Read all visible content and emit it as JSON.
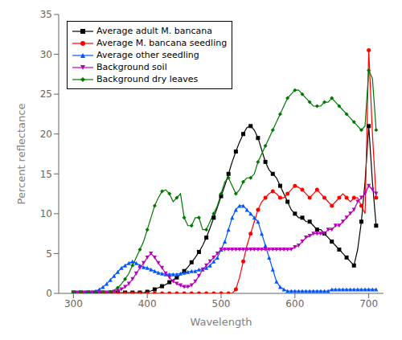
{
  "chart_data": {
    "type": "line",
    "xlabel": "Wavelength",
    "ylabel": "Percent reflectance",
    "xlim": [
      280,
      720
    ],
    "ylim": [
      0,
      35
    ],
    "xticks": [
      300,
      400,
      500,
      600,
      700
    ],
    "yticks": [
      0,
      5,
      10,
      15,
      20,
      25,
      30,
      35
    ],
    "grid": false,
    "legend": "upper left",
    "x": [
      300,
      305,
      310,
      315,
      320,
      325,
      330,
      335,
      340,
      345,
      350,
      355,
      360,
      365,
      370,
      375,
      380,
      385,
      390,
      395,
      400,
      405,
      410,
      415,
      420,
      425,
      430,
      435,
      440,
      445,
      450,
      455,
      460,
      465,
      470,
      475,
      480,
      485,
      490,
      495,
      500,
      505,
      510,
      515,
      520,
      525,
      530,
      535,
      540,
      545,
      550,
      555,
      560,
      565,
      570,
      575,
      580,
      585,
      590,
      595,
      600,
      605,
      610,
      615,
      620,
      625,
      630,
      635,
      640,
      645,
      650,
      655,
      660,
      665,
      670,
      675,
      680,
      685,
      690,
      695,
      700,
      705,
      710
    ],
    "series": [
      {
        "name": "Average adult M. bancana",
        "color": "black",
        "marker": "square",
        "values": [
          0.1,
          0.1,
          0.1,
          0.1,
          0.1,
          0.1,
          0.1,
          0.1,
          0.1,
          0.1,
          0.1,
          0.1,
          0.1,
          0.1,
          0.1,
          0.1,
          0.1,
          0.1,
          0.1,
          0.1,
          0.2,
          0.3,
          0.5,
          0.7,
          0.9,
          1.1,
          1.4,
          1.7,
          2.0,
          2.4,
          2.8,
          3.3,
          3.9,
          4.5,
          5.2,
          6.0,
          7.0,
          8.2,
          9.5,
          10.8,
          12.2,
          13.5,
          15.0,
          16.5,
          17.8,
          19.0,
          20.0,
          20.8,
          21.0,
          20.5,
          19.5,
          18.0,
          16.5,
          15.5,
          15.0,
          14.5,
          13.5,
          12.5,
          11.5,
          10.5,
          10.0,
          9.5,
          9.5,
          9.0,
          9.0,
          8.5,
          8.0,
          8.0,
          7.5,
          7.0,
          6.5,
          6.0,
          5.5,
          5.0,
          4.5,
          4.0,
          3.5,
          5.5,
          9.0,
          14.0,
          21.0,
          14.0,
          8.5
        ]
      },
      {
        "name": "Average M. bancana seedling",
        "color": "#ff0000",
        "marker": "circle",
        "values": [
          0.0,
          0.0,
          0.0,
          0.0,
          0.0,
          0.0,
          0.0,
          0.0,
          0.0,
          0.0,
          0.0,
          0.0,
          0.0,
          0.0,
          0.0,
          0.0,
          0.0,
          0.0,
          0.0,
          0.0,
          0.0,
          0.0,
          0.0,
          0.0,
          0.0,
          0.0,
          0.0,
          0.0,
          0.0,
          0.0,
          0.0,
          0.0,
          0.0,
          0.0,
          0.0,
          0.0,
          0.0,
          0.0,
          0.0,
          0.0,
          0.0,
          0.0,
          0.0,
          0.0,
          0.5,
          2.0,
          4.0,
          6.0,
          7.5,
          9.0,
          10.5,
          11.5,
          12.0,
          12.5,
          12.8,
          12.5,
          12.0,
          12.0,
          12.5,
          13.0,
          13.5,
          13.3,
          13.0,
          12.5,
          12.0,
          12.5,
          13.0,
          12.5,
          12.0,
          11.5,
          11.0,
          11.5,
          12.0,
          12.5,
          12.0,
          11.5,
          12.0,
          12.0,
          11.0,
          10.0,
          30.5,
          20.0,
          12.0
        ]
      },
      {
        "name": "Average other seedling",
        "color": "#0055ff",
        "marker": "triangle-up",
        "values": [
          0.1,
          0.1,
          0.1,
          0.1,
          0.1,
          0.2,
          0.3,
          0.5,
          0.8,
          1.2,
          1.7,
          2.2,
          2.7,
          3.2,
          3.5,
          3.8,
          4.0,
          3.8,
          3.5,
          3.3,
          3.2,
          3.0,
          2.8,
          2.6,
          2.5,
          2.4,
          2.4,
          2.4,
          2.4,
          2.5,
          2.6,
          2.7,
          2.8,
          2.8,
          3.0,
          3.0,
          3.2,
          3.5,
          4.0,
          4.5,
          5.5,
          6.5,
          8.0,
          9.5,
          10.5,
          11.0,
          11.0,
          10.5,
          10.0,
          9.5,
          9.0,
          7.5,
          6.0,
          4.5,
          3.0,
          1.5,
          0.8,
          0.5,
          0.3,
          0.3,
          0.3,
          0.3,
          0.3,
          0.3,
          0.3,
          0.3,
          0.3,
          0.3,
          0.3,
          0.3,
          0.5,
          0.5,
          0.5,
          0.5,
          0.5,
          0.5,
          0.5,
          0.5,
          0.5,
          0.5,
          0.5,
          0.5,
          0.5
        ]
      },
      {
        "name": "Background soil",
        "color": "#bb00bb",
        "marker": "triangle-down",
        "values": [
          0.1,
          0.1,
          0.1,
          0.1,
          0.1,
          0.1,
          0.1,
          0.1,
          0.1,
          0.1,
          0.1,
          0.2,
          0.3,
          0.5,
          0.8,
          1.2,
          1.8,
          2.5,
          3.2,
          3.8,
          4.5,
          5.0,
          4.5,
          3.8,
          3.2,
          2.5,
          2.0,
          1.5,
          1.2,
          1.0,
          0.8,
          0.8,
          1.0,
          1.5,
          2.2,
          3.0,
          3.5,
          4.0,
          4.5,
          5.0,
          5.5,
          5.5,
          5.5,
          5.5,
          5.5,
          5.5,
          5.5,
          5.5,
          5.5,
          5.5,
          5.5,
          5.5,
          5.5,
          5.5,
          5.5,
          5.5,
          5.5,
          5.5,
          5.5,
          5.5,
          5.8,
          6.0,
          6.5,
          7.0,
          7.2,
          7.5,
          7.5,
          7.5,
          7.5,
          8.0,
          8.0,
          8.5,
          8.5,
          9.0,
          9.5,
          10.0,
          10.5,
          11.5,
          12.0,
          12.5,
          13.5,
          13.0,
          12.5
        ]
      },
      {
        "name": "Background dry leaves",
        "color": "#007700",
        "marker": "diamond",
        "values": [
          0.1,
          0.1,
          0.1,
          0.1,
          0.1,
          0.1,
          0.1,
          0.1,
          0.1,
          0.1,
          0.2,
          0.4,
          0.7,
          1.2,
          1.8,
          2.5,
          3.5,
          4.5,
          5.5,
          6.5,
          8.0,
          9.5,
          11.0,
          12.0,
          12.8,
          13.0,
          12.5,
          11.5,
          12.0,
          12.5,
          9.5,
          8.5,
          8.5,
          9.5,
          9.5,
          8.0,
          8.0,
          9.0,
          10.0,
          11.0,
          12.5,
          14.0,
          14.5,
          13.5,
          12.5,
          13.0,
          14.0,
          14.5,
          14.5,
          15.0,
          16.5,
          17.5,
          18.5,
          19.5,
          20.5,
          21.5,
          22.5,
          23.5,
          24.5,
          25.0,
          25.5,
          25.5,
          25.0,
          24.5,
          24.0,
          23.5,
          23.5,
          23.5,
          24.0,
          24.0,
          24.5,
          24.0,
          23.5,
          23.0,
          22.5,
          22.0,
          21.5,
          21.0,
          20.5,
          21.0,
          28.0,
          27.0,
          20.5
        ]
      }
    ]
  }
}
